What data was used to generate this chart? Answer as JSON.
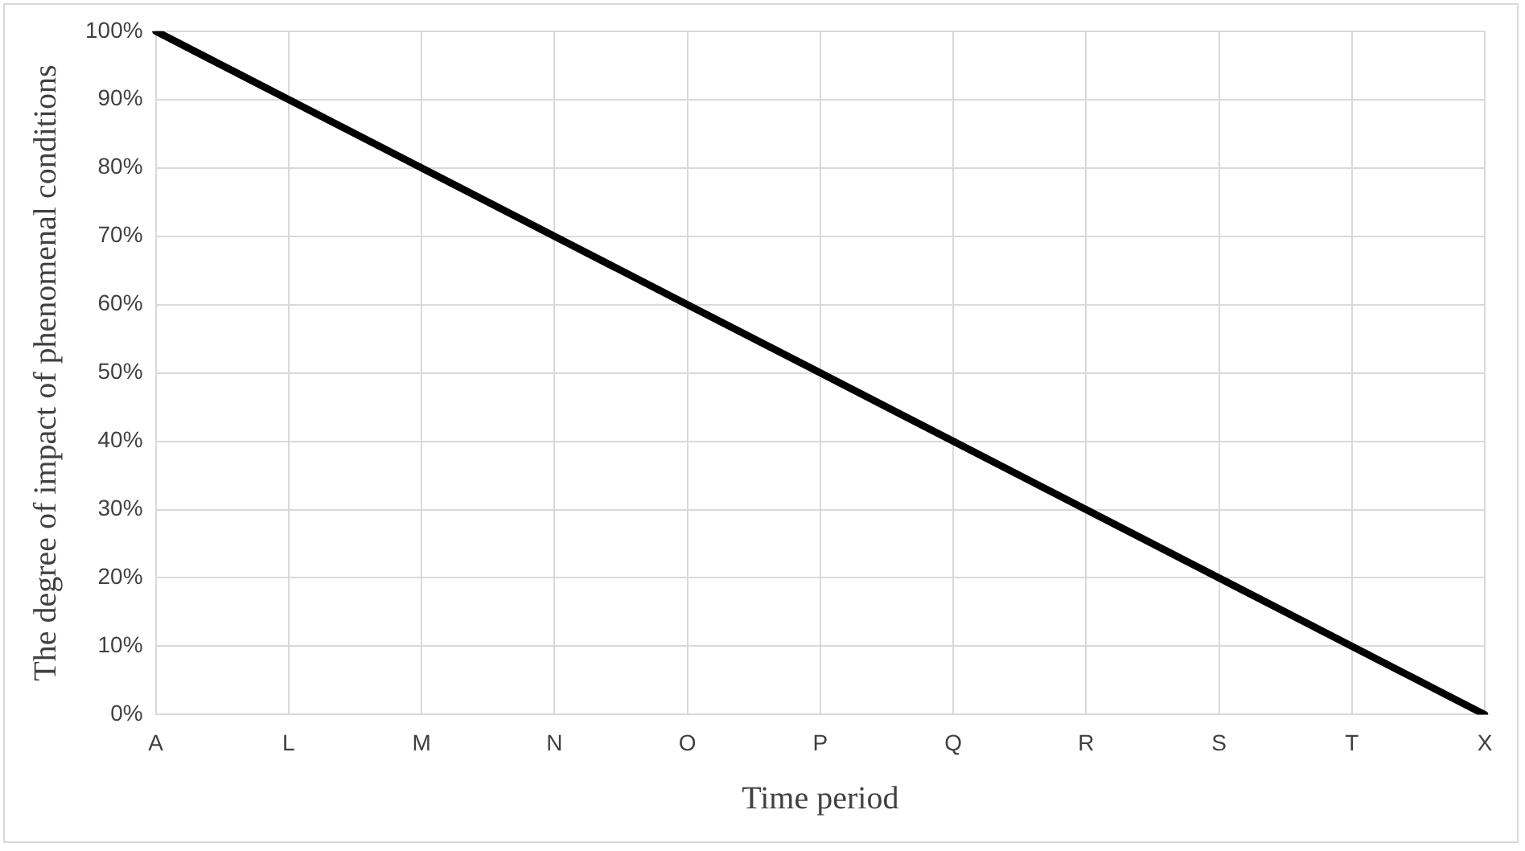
{
  "chart_data": {
    "type": "line",
    "xlabel": "Time period",
    "ylabel": "The degree of impact of phenomenal conditions",
    "categories": [
      "A",
      "L",
      "M",
      "N",
      "O",
      "P",
      "Q",
      "R",
      "S",
      "T",
      "X"
    ],
    "series": [
      {
        "color": "#000000",
        "values": [
          100,
          90,
          80,
          70,
          60,
          50,
          40,
          30,
          20,
          10,
          0
        ]
      }
    ],
    "ylim": [
      0,
      100
    ],
    "yticks": [
      {
        "value": 0,
        "label": "0%"
      },
      {
        "value": 10,
        "label": "10%"
      },
      {
        "value": 20,
        "label": "20%"
      },
      {
        "value": 30,
        "label": "30%"
      },
      {
        "value": 40,
        "label": "40%"
      },
      {
        "value": 50,
        "label": "50%"
      },
      {
        "value": 60,
        "label": "60%"
      },
      {
        "value": 70,
        "label": "70%"
      },
      {
        "value": 80,
        "label": "80%"
      },
      {
        "value": 90,
        "label": "90%"
      },
      {
        "value": 100,
        "label": "100%"
      }
    ],
    "grid": true,
    "legend": false,
    "marker": "none",
    "line_style": "solid"
  }
}
